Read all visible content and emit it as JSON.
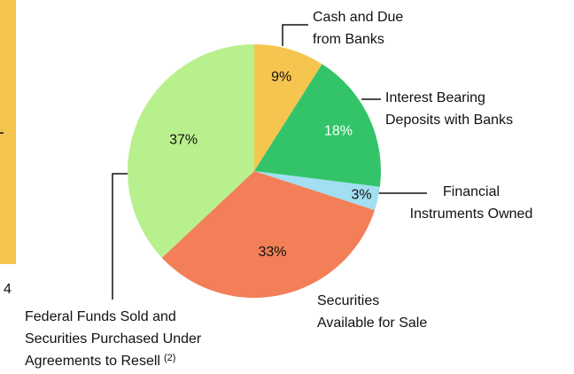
{
  "chart_data": {
    "type": "pie",
    "labels": [
      [
        "Cash and Due",
        "from Banks"
      ],
      [
        "Interest Bearing",
        "Deposits with Banks"
      ],
      [
        "Financial",
        "Instruments Owned"
      ],
      [
        "Securities",
        "Available for Sale"
      ],
      [
        "Federal Funds Sold and",
        "Securities Purchased Under",
        "Agreements to Resell"
      ]
    ],
    "label_notes": [
      null,
      null,
      null,
      null,
      "(2)"
    ],
    "values": [
      9,
      18,
      3,
      33,
      37
    ],
    "value_labels": [
      "9%",
      "18%",
      "3%",
      "33%",
      "37%"
    ],
    "colors": [
      "#f6c550",
      "#33c46a",
      "#a2dff0",
      "#f27f57",
      "#b9f08e"
    ],
    "value_label_colors": [
      "#111111",
      "#ffffff",
      "#111111",
      "#111111",
      "#111111"
    ]
  },
  "side_text": "4"
}
